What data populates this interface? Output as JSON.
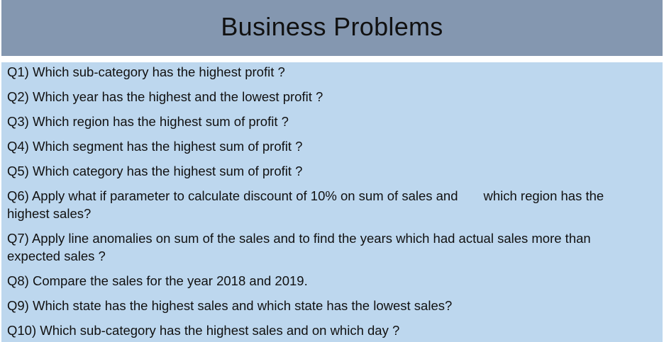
{
  "header": {
    "title": "Business Problems"
  },
  "questions": [
    "Q1) Which sub-category has the highest profit ?",
    "Q2) Which year has the highest and the lowest profit ?",
    "Q3) Which region has the highest sum of profit ?",
    "Q4) Which segment has the highest sum of profit ?",
    "Q5) Which category has the highest sum of profit ?",
    "Q6) Apply what if parameter to calculate discount of 10% on sum of sales and       which region has the highest sales?",
    "Q7) Apply line anomalies on sum of the sales and to find the years which had actual sales more than expected sales ?",
    "Q8) Compare the sales for the year 2018 and 2019.",
    "Q9) Which state has the highest sales and which state has the lowest sales?",
    "Q10) Which sub-category has the highest sales and on which day ?"
  ],
  "colors": {
    "header_bg": "#8497b0",
    "body_bg": "#bdd7ee",
    "text": "#111111"
  }
}
